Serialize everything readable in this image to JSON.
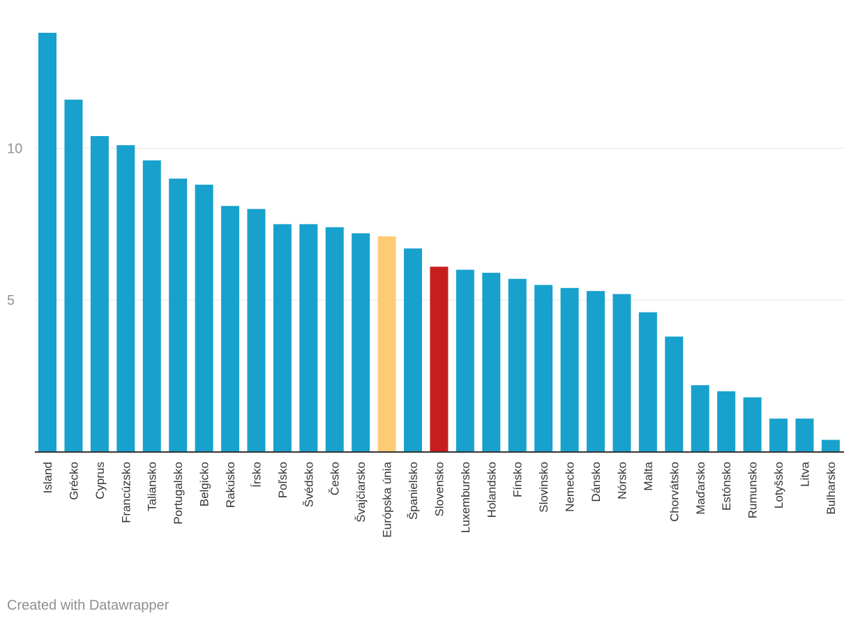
{
  "chart_data": {
    "type": "bar",
    "title": "",
    "xlabel": "",
    "ylabel": "",
    "ylim": [
      0,
      13.8
    ],
    "yticks": [
      5,
      10
    ],
    "grid": true,
    "categories": [
      "Island",
      "Grécko",
      "Cyprus",
      "Francúzsko",
      "Taliansko",
      "Portugalsko",
      "Belgicko",
      "Rakúsko",
      "Írsko",
      "Poľsko",
      "Švédsko",
      "Česko",
      "Švajčiarsko",
      "Európska únia",
      "Španielsko",
      "Slovensko",
      "Luxembursko",
      "Holandsko",
      "Fínsko",
      "Slovinsko",
      "Nemecko",
      "Dánsko",
      "Nórsko",
      "Malta",
      "Chorvátsko",
      "Maďarsko",
      "Estónsko",
      "Rumunsko",
      "Lotyšsko",
      "Litva",
      "Bulharsko"
    ],
    "values": [
      13.8,
      11.6,
      10.4,
      10.1,
      9.6,
      9.0,
      8.8,
      8.1,
      8.0,
      7.5,
      7.5,
      7.4,
      7.2,
      7.1,
      6.7,
      6.1,
      6.0,
      5.9,
      5.7,
      5.5,
      5.4,
      5.3,
      5.2,
      4.6,
      3.8,
      2.2,
      2.0,
      1.8,
      1.1,
      1.1,
      0.4
    ],
    "colors": {
      "default": "#18a1cd",
      "highlight_eu": "#ffca76",
      "highlight_sk": "#c71e1d",
      "grid": "#e6e6e6",
      "axis": "#333333",
      "tick_text": "#939393",
      "label_text": "#333333"
    },
    "highlights": {
      "Európska únia": "highlight_eu",
      "Slovensko": "highlight_sk"
    }
  },
  "footer": {
    "credit": "Created with Datawrapper"
  }
}
